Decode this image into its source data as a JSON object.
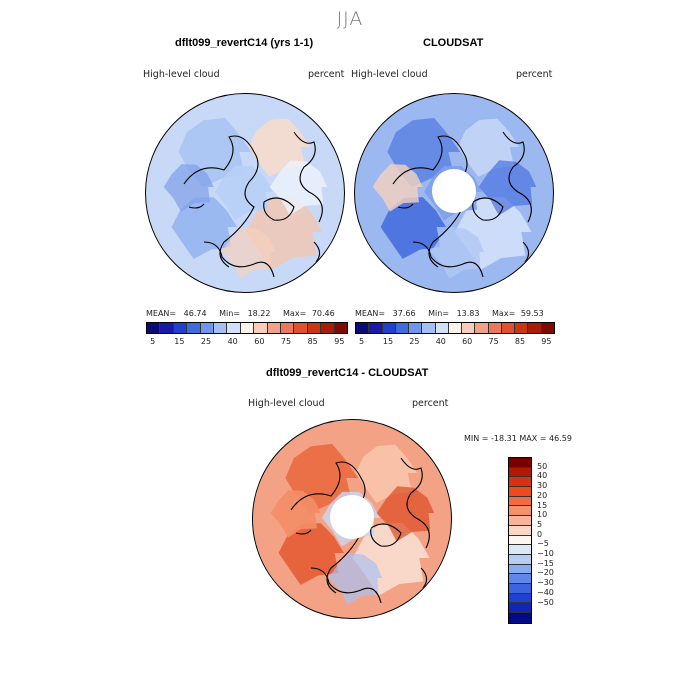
{
  "title": "JJA",
  "left_panel": {
    "heading": "dflt099_revertC14 (yrs 1-1)",
    "variable": "High-level cloud",
    "units": "percent",
    "stats": {
      "mean_label": "MEAN=",
      "mean": "46.74",
      "min_label": "Min=",
      "min": "18.22",
      "max_label": "Max=",
      "max": "70.46"
    }
  },
  "right_panel": {
    "heading": "CLOUDSAT",
    "variable": "High-level cloud",
    "units": "percent",
    "stats": {
      "mean_label": "MEAN=",
      "mean": "37.66",
      "min_label": "Min=",
      "min": "13.83",
      "max_label": "Max=",
      "max": "59.53"
    }
  },
  "abs_colorbar": {
    "colors": [
      "#0a0a78",
      "#1a1aa8",
      "#2040d0",
      "#3d6be0",
      "#6f96ec",
      "#a3bff4",
      "#d2e0fa",
      "#fbf3ea",
      "#f7cdb8",
      "#f2a284",
      "#eb7a5c",
      "#e0502f",
      "#cc3512",
      "#a71e08",
      "#7f0a00"
    ],
    "tick_labels": [
      "5",
      "15",
      "25",
      "40",
      "60",
      "75",
      "85",
      "95"
    ]
  },
  "diff_panel": {
    "heading": "dflt099_revertC14 - CLOUDSAT",
    "variable": "High-level cloud",
    "units": "percent",
    "minmax": "MIN = -18.31 MAX =  46.59",
    "colorbar": {
      "colors": [
        "#7a0000",
        "#b21a00",
        "#d83010",
        "#ee4a1e",
        "#f26a40",
        "#f58f6c",
        "#f8b39a",
        "#fad6c8",
        "#fdf6ef",
        "#dce8f8",
        "#b5cdf3",
        "#88aaee",
        "#6086e8",
        "#3d63e0",
        "#2040d0",
        "#1024b8",
        "#000a88"
      ],
      "labels": [
        "50",
        "40",
        "30",
        "20",
        "15",
        "10",
        "5",
        "0",
        "−5",
        "−10",
        "−15",
        "−20",
        "−30",
        "−40",
        "−50"
      ]
    }
  },
  "maps": [
    {
      "name": "left",
      "base": "#c7d9f7",
      "patches": [
        {
          "c": "#a9c4f2",
          "o": 0.9
        },
        {
          "c": "#f6dccd",
          "o": 0.9
        },
        {
          "c": "#8fb0ee",
          "o": 0.8
        },
        {
          "c": "#f3c6b0",
          "o": 0.8
        },
        {
          "c": "#b8cff6",
          "o": 0.9
        },
        {
          "c": "#7f9fe9",
          "o": 0.7
        },
        {
          "c": "#eef2fb",
          "o": 0.8
        },
        {
          "c": "#f7d0bc",
          "o": 0.7
        }
      ],
      "hole": false
    },
    {
      "name": "right",
      "base": "#9bb8f0",
      "patches": [
        {
          "c": "#5f86e3",
          "o": 0.9
        },
        {
          "c": "#c4d6f7",
          "o": 0.9
        },
        {
          "c": "#3b64dc",
          "o": 0.8
        },
        {
          "c": "#d9e5fb",
          "o": 0.8
        },
        {
          "c": "#7ea1ea",
          "o": 0.9
        },
        {
          "c": "#f6d2bf",
          "o": 0.8
        },
        {
          "c": "#4a72df",
          "o": 0.7
        },
        {
          "c": "#b0c8f4",
          "o": 0.8
        }
      ],
      "hole": true
    },
    {
      "name": "diff",
      "base": "#f4a285",
      "patches": [
        {
          "c": "#eb6a40",
          "o": 0.9
        },
        {
          "c": "#f8c4ac",
          "o": 0.9
        },
        {
          "c": "#e2542a",
          "o": 0.8
        },
        {
          "c": "#fbe6da",
          "o": 0.8
        },
        {
          "c": "#c9d9f6",
          "o": 0.8
        },
        {
          "c": "#f38d66",
          "o": 0.9
        },
        {
          "c": "#dc4a20",
          "o": 0.7
        },
        {
          "c": "#a9c2f2",
          "o": 0.7
        }
      ],
      "hole": true
    }
  ]
}
